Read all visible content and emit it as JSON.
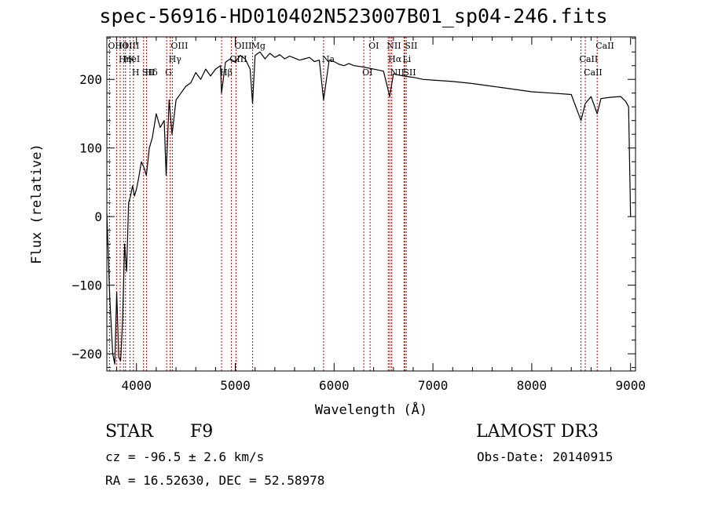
{
  "chart_data": {
    "type": "line",
    "title": "spec-56916-HD010402N523007B01_sp04-246.fits",
    "xlabel": "Wavelength (Å)",
    "ylabel": "Flux (relative)",
    "xlim": [
      3700,
      9050
    ],
    "ylim": [
      -225,
      262
    ],
    "xticks": [
      4000,
      5000,
      6000,
      7000,
      8000,
      9000
    ],
    "yticks": [
      -200,
      -100,
      0,
      100,
      200
    ],
    "series": [
      {
        "name": "flux",
        "x": [
          3700,
          3730,
          3760,
          3780,
          3800,
          3820,
          3840,
          3860,
          3880,
          3900,
          3920,
          3940,
          3960,
          3980,
          4000,
          4020,
          4050,
          4080,
          4100,
          4130,
          4160,
          4200,
          4240,
          4280,
          4300,
          4330,
          4360,
          4400,
          4450,
          4500,
          4550,
          4600,
          4650,
          4700,
          4750,
          4800,
          4850,
          4861,
          4900,
          4950,
          5000,
          5050,
          5100,
          5150,
          5175,
          5200,
          5250,
          5300,
          5350,
          5400,
          5450,
          5500,
          5550,
          5600,
          5650,
          5700,
          5750,
          5800,
          5850,
          5893,
          5950,
          6000,
          6050,
          6100,
          6150,
          6200,
          6300,
          6400,
          6500,
          6563,
          6600,
          6700,
          6800,
          6900,
          7000,
          7200,
          7400,
          7600,
          7800,
          8000,
          8200,
          8400,
          8498,
          8542,
          8600,
          8662,
          8700,
          8800,
          8900,
          8950,
          8980,
          9000
        ],
        "y": [
          5,
          -120,
          -200,
          -215,
          -110,
          -205,
          -210,
          -150,
          -40,
          -80,
          20,
          30,
          45,
          30,
          40,
          55,
          80,
          70,
          60,
          100,
          115,
          150,
          130,
          140,
          60,
          170,
          120,
          170,
          180,
          190,
          195,
          210,
          200,
          215,
          205,
          215,
          220,
          180,
          225,
          230,
          225,
          235,
          230,
          215,
          165,
          235,
          240,
          230,
          238,
          232,
          236,
          230,
          234,
          231,
          228,
          230,
          232,
          226,
          228,
          170,
          228,
          226,
          222,
          220,
          223,
          220,
          218,
          215,
          212,
          175,
          208,
          205,
          203,
          200,
          199,
          197,
          194,
          190,
          186,
          182,
          180,
          178,
          140,
          165,
          175,
          150,
          172,
          174,
          175,
          168,
          160,
          0
        ]
      }
    ],
    "line_markers": [
      {
        "label": "Hθ",
        "x": 3798
      },
      {
        "label": "K",
        "x": 3934
      },
      {
        "label": "Hδ",
        "x": 4102
      },
      {
        "label": "OII",
        "x": 3727
      },
      {
        "label": "HeI",
        "x": 3889
      },
      {
        "label": "SII",
        "x": 4072
      },
      {
        "label": "OIII",
        "x": 3869
      },
      {
        "label": "Hη",
        "x": 3835
      },
      {
        "label": "H",
        "x": 3969
      },
      {
        "label": "OIII",
        "x": 4363
      },
      {
        "label": "Hγ",
        "x": 4341
      },
      {
        "label": "G",
        "x": 4305
      },
      {
        "label": "OIII",
        "x": 5007
      },
      {
        "label": "OIII",
        "x": 4959
      },
      {
        "label": "Hβ",
        "x": 4861
      },
      {
        "label": "Mg",
        "x": 5176
      },
      {
        "label": "Na",
        "x": 5893
      },
      {
        "label": "OI",
        "x": 6300
      },
      {
        "label": "OI",
        "x": 6364
      },
      {
        "label": "Hα",
        "x": 6563
      },
      {
        "label": "SII",
        "x": 6716
      },
      {
        "label": "NII",
        "x": 6548
      },
      {
        "label": "Li",
        "x": 6708
      },
      {
        "label": "NII",
        "x": 6583
      },
      {
        "label": "SII",
        "x": 6731
      },
      {
        "label": "CaII",
        "x": 8498
      },
      {
        "label": "CaII",
        "x": 8542
      },
      {
        "label": "CaII",
        "x": 8662
      }
    ],
    "colors": {
      "line": "#000000",
      "marker": "#cc0000",
      "axis": "#000000"
    }
  },
  "footer": {
    "object_class": "STAR",
    "subclass": "F9",
    "survey": "LAMOST DR3",
    "cz": "cz = -96.5 ± 2.6 km/s",
    "obs_date": "Obs-Date: 20140915",
    "radec": "RA =  16.52630, DEC =  52.58978"
  }
}
